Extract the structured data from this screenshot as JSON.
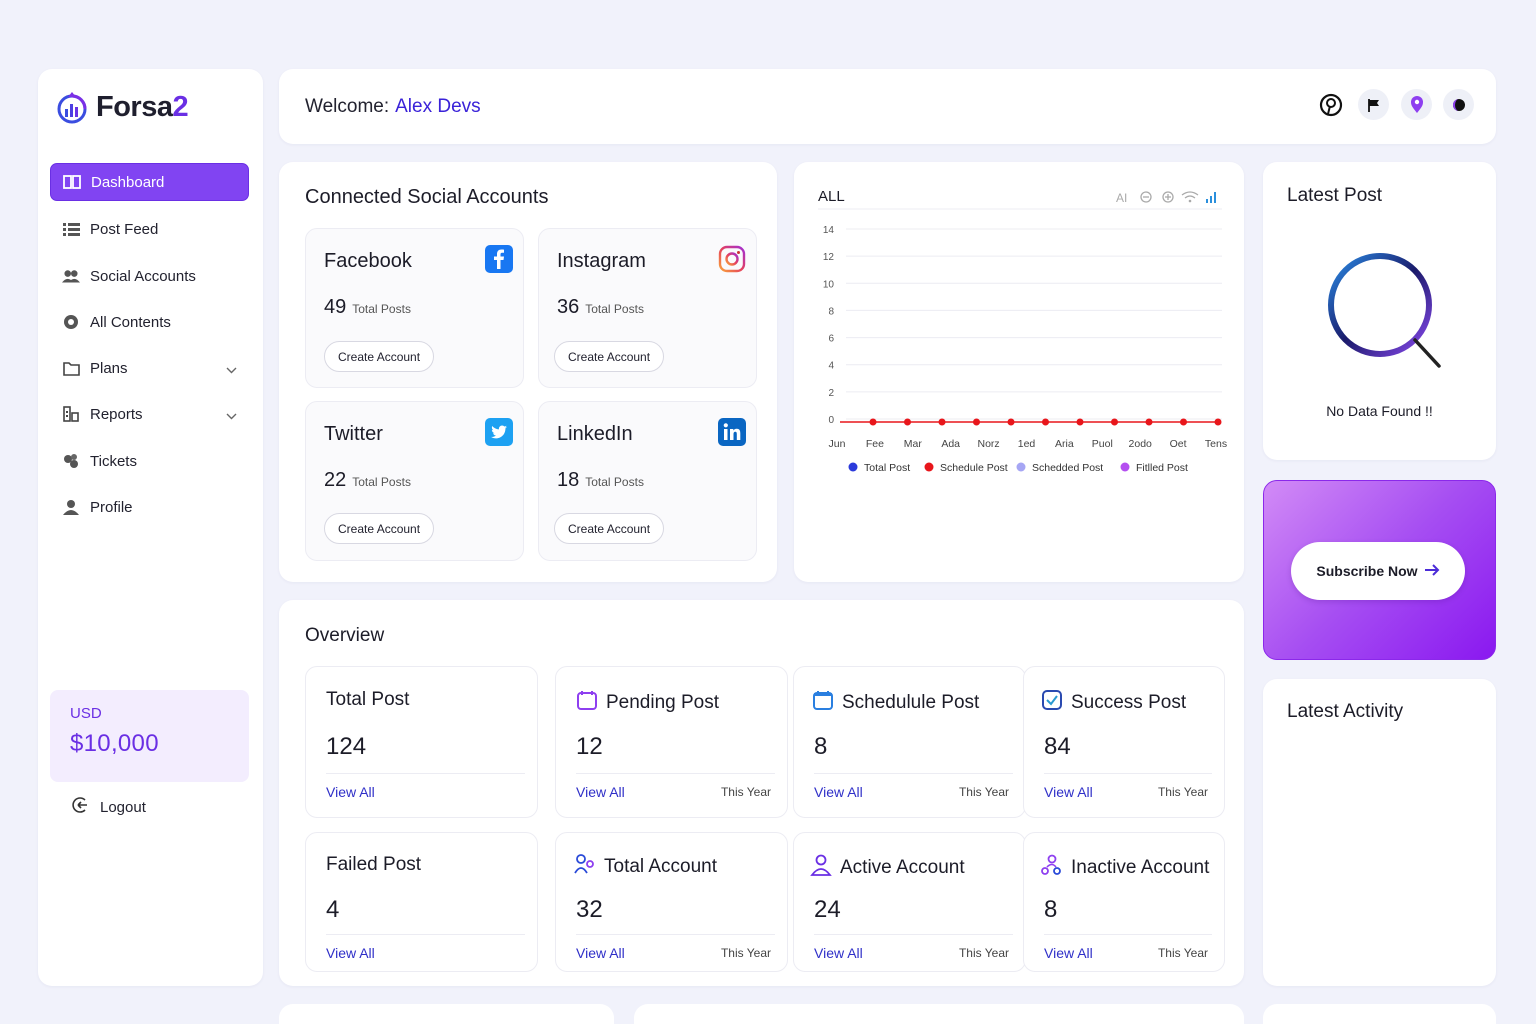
{
  "brand": {
    "name_main": "Forsa",
    "name_accent": "2"
  },
  "sidebar": {
    "items": [
      {
        "label": "Dashboard",
        "icon": "book-icon",
        "active": true
      },
      {
        "label": "Post Feed",
        "icon": "list-icon"
      },
      {
        "label": "Social Accounts",
        "icon": "users-icon"
      },
      {
        "label": "All Contents",
        "icon": "record-icon"
      },
      {
        "label": "Plans",
        "icon": "folder-icon",
        "chevron": true
      },
      {
        "label": "Reports",
        "icon": "reports-icon",
        "chevron": true
      },
      {
        "label": "Tickets",
        "icon": "tickets-icon"
      },
      {
        "label": "Profile",
        "icon": "user-icon"
      }
    ],
    "balance": {
      "currency": "USD",
      "amount": "$10,000"
    },
    "logout": "Logout"
  },
  "header": {
    "welcome": "Welcome:",
    "user_name": "Alex Devs",
    "icons": [
      "pinterest-icon",
      "flag-icon",
      "location-pin-icon",
      "theme-toggle-icon"
    ]
  },
  "connected": {
    "title": "Connected Social Accounts",
    "accounts": [
      {
        "name": "Facebook",
        "count": "49",
        "count_label": "Total Posts",
        "button": "Create Account",
        "icon": "facebook-icon",
        "color": "#1877f2"
      },
      {
        "name": "Instagram",
        "count": "36",
        "count_label": "Total Posts",
        "button": "Create Account",
        "icon": "instagram-icon",
        "color": "#e4405f"
      },
      {
        "name": "Twitter",
        "count": "22",
        "count_label": "Total Posts",
        "button": "Create Account",
        "icon": "twitter-icon",
        "color": "#1da1f2"
      },
      {
        "name": "LinkedIn",
        "count": "18",
        "count_label": "Total Posts",
        "button": "Create Account",
        "icon": "linkedin-icon",
        "color": "#0a66c2"
      }
    ]
  },
  "chart_data": {
    "type": "line",
    "title": "ALL",
    "title_marks": [
      "AI"
    ],
    "categories": [
      "Jun",
      "Fee",
      "Mar",
      "Ada",
      "Norz",
      "1ed",
      "Aria",
      "Puol",
      "2odo",
      "Oet",
      "Tens"
    ],
    "ylim": [
      0,
      14
    ],
    "yticks": [
      0,
      2,
      4,
      6,
      8,
      10,
      12,
      14
    ],
    "grid": true,
    "series": [
      {
        "name": "Total Post",
        "color": "#2b3adb",
        "values": [
          0,
          0,
          0,
          0,
          0,
          0,
          0,
          0,
          0,
          0,
          0
        ]
      },
      {
        "name": "Schedule Post",
        "color": "#e8161b",
        "values": [
          0,
          0,
          0,
          0,
          0,
          0,
          0,
          0,
          0,
          0,
          0
        ]
      },
      {
        "name": "Schedded Post",
        "color": "#a6a6f4",
        "values": [
          0,
          0,
          0,
          0,
          0,
          0,
          0,
          0,
          0,
          0,
          0
        ]
      },
      {
        "name": "Fitlled Post",
        "color": "#b44ff0",
        "values": [
          0,
          0,
          0,
          0,
          0,
          0,
          0,
          0,
          0,
          0,
          0
        ]
      }
    ],
    "visible_series": "Schedule Post",
    "legend_position": "bottom"
  },
  "latest_post": {
    "title": "Latest Post",
    "empty": "No Data Found !!"
  },
  "subscribe": {
    "label": "Subscribe Now"
  },
  "latest_activity": {
    "title": "Latest Activity"
  },
  "overview": {
    "title": "Overview",
    "stats": [
      {
        "label": "Total Post",
        "value": "124",
        "link": "View All",
        "period": "",
        "icon": ""
      },
      {
        "label": "Pending Post",
        "value": "12",
        "link": "View All",
        "period": "This Year",
        "icon": "calendar-icon"
      },
      {
        "label": "Schedulule Post",
        "value": "8",
        "link": "View All",
        "period": "This Year",
        "icon": "calendar-icon"
      },
      {
        "label": "Success Post",
        "value": "84",
        "link": "View All",
        "period": "This Year",
        "icon": "check-box-icon"
      },
      {
        "label": "Failed Post",
        "value": "4",
        "link": "View All",
        "period": "",
        "icon": ""
      },
      {
        "label": "Total Account",
        "value": "32",
        "link": "View All",
        "period": "This Year",
        "icon": "users-icon"
      },
      {
        "label": "Active Account",
        "value": "24",
        "link": "View All",
        "period": "This Year",
        "icon": "user-icon"
      },
      {
        "label": "Inactive Account",
        "value": "8",
        "link": "View All",
        "period": "This Year",
        "icon": "user-network-icon"
      }
    ]
  },
  "colors": {
    "accent": "#8144f2",
    "brand_blue": "#3a22d8",
    "link": "#2f2fc8",
    "page_bg": "#f1f2fb"
  }
}
